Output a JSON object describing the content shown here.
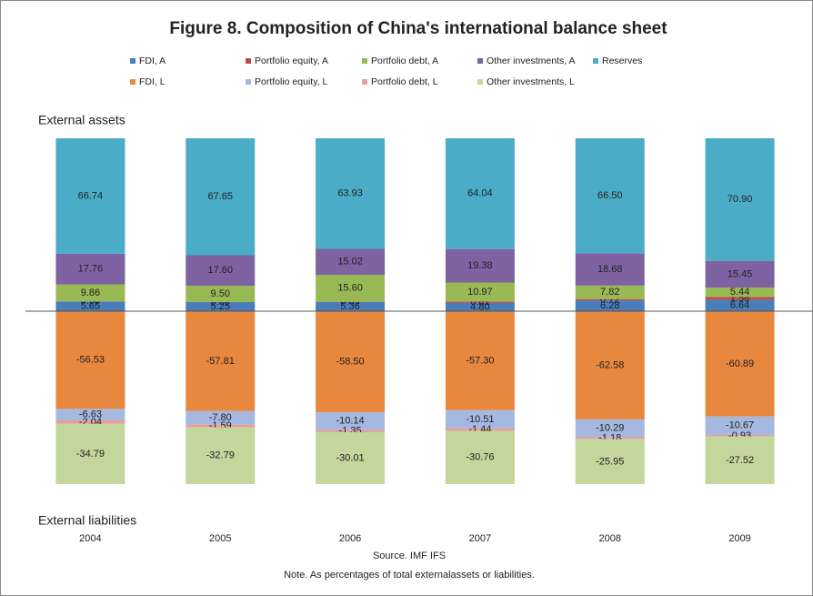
{
  "chart_data": {
    "type": "stacked_bar",
    "title": "Figure 8. Composition of China's international balance sheet",
    "upper_label": "External assets",
    "lower_label": "External liabilities",
    "source": "Source. IMF IFS",
    "note": "Note. As percentages of total externalassets or liabilities.",
    "categories": [
      "2004",
      "2005",
      "2006",
      "2007",
      "2008",
      "2009"
    ],
    "ylim": [
      -100,
      100
    ],
    "series": [
      {
        "name": "FDI, A",
        "color": "#4a7ebb",
        "values": [
          5.65,
          5.25,
          5.36,
          4.8,
          6.28,
          6.64
        ],
        "value_labels": [
          "5.65",
          "5.25",
          "5.36",
          "4.80",
          "6.28",
          "6.64"
        ]
      },
      {
        "name": "Portfolio equity, A",
        "color": "#be4b48",
        "values": [
          0.0,
          0.0,
          0.09,
          0.81,
          0.72,
          1.58
        ],
        "value_labels": [
          "0.00",
          "0.00",
          "0.09",
          "0.81",
          "0.72",
          "1.58"
        ]
      },
      {
        "name": "Portfolio debt, A",
        "color": "#98b954",
        "values": [
          9.86,
          9.5,
          15.6,
          10.97,
          7.82,
          5.44
        ],
        "value_labels": [
          "9.86",
          "9.50",
          "15.60",
          "10.97",
          "7.82",
          "5.44"
        ]
      },
      {
        "name": "Other investments, A",
        "color": "#7e62a1",
        "values": [
          17.76,
          17.6,
          15.02,
          19.38,
          18.68,
          15.45
        ],
        "value_labels": [
          "17.76",
          "17.60",
          "15.02",
          "19.38",
          "18.68",
          "15.45"
        ]
      },
      {
        "name": "Reserves",
        "color": "#4aacc6",
        "values": [
          66.74,
          67.65,
          63.93,
          64.04,
          66.5,
          70.9
        ],
        "value_labels": [
          "66.74",
          "67.65",
          "63.93",
          "64.04",
          "66.50",
          "70.90"
        ]
      },
      {
        "name": "FDI, L",
        "color": "#e8883f",
        "values": [
          -56.53,
          -57.81,
          -58.5,
          -57.3,
          -62.58,
          -60.89
        ],
        "value_labels": [
          "-56.53",
          "-57.81",
          "-58.50",
          "-57.30",
          "-62.58",
          "-60.89"
        ]
      },
      {
        "name": "Portfolio equity, L",
        "color": "#a5b9e0",
        "values": [
          -6.63,
          -7.8,
          -10.14,
          -10.51,
          -10.29,
          -10.67
        ],
        "value_labels": [
          "-6.63",
          "-7.80",
          "-10.14",
          "-10.51",
          "-10.29",
          "-10.67"
        ]
      },
      {
        "name": "Portfolio debt, L",
        "color": "#e6a09c",
        "values": [
          -2.04,
          -1.59,
          -1.35,
          -1.44,
          -1.18,
          -0.93
        ],
        "value_labels": [
          "-2.04",
          "-1.59",
          "-1.35",
          "-1.44",
          "-1.18",
          "-0.93"
        ]
      },
      {
        "name": "Other investments, L",
        "color": "#c3d69b",
        "values": [
          -34.79,
          -32.79,
          -30.01,
          -30.76,
          -25.95,
          -27.52
        ],
        "value_labels": [
          "-34.79",
          "-32.79",
          "-30.01",
          "-30.76",
          "-25.95",
          "-27.52"
        ]
      }
    ]
  }
}
